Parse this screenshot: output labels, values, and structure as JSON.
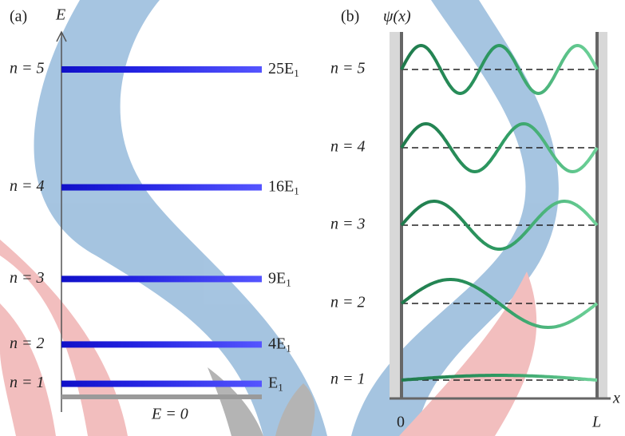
{
  "panel_a": {
    "label": "(a)",
    "axis_label": "E",
    "zero_label": "E = 0",
    "levels": [
      {
        "n_label": "n = 1",
        "energy_label": "E",
        "subscript": "1"
      },
      {
        "n_label": "n = 2",
        "energy_label": "4E",
        "subscript": "1"
      },
      {
        "n_label": "n = 3",
        "energy_label": "9E",
        "subscript": "1"
      },
      {
        "n_label": "n = 4",
        "energy_label": "16E",
        "subscript": "1"
      },
      {
        "n_label": "n = 5",
        "energy_label": "25E",
        "subscript": "1"
      }
    ]
  },
  "panel_b": {
    "label": "(b)",
    "axis_label": "ψ(x)",
    "x_start": "0",
    "x_end": "L",
    "x_axis": "x",
    "states": [
      {
        "n_label": "n = 1"
      },
      {
        "n_label": "n = 2"
      },
      {
        "n_label": "n = 3"
      },
      {
        "n_label": "n = 4"
      },
      {
        "n_label": "n = 5"
      }
    ]
  }
}
